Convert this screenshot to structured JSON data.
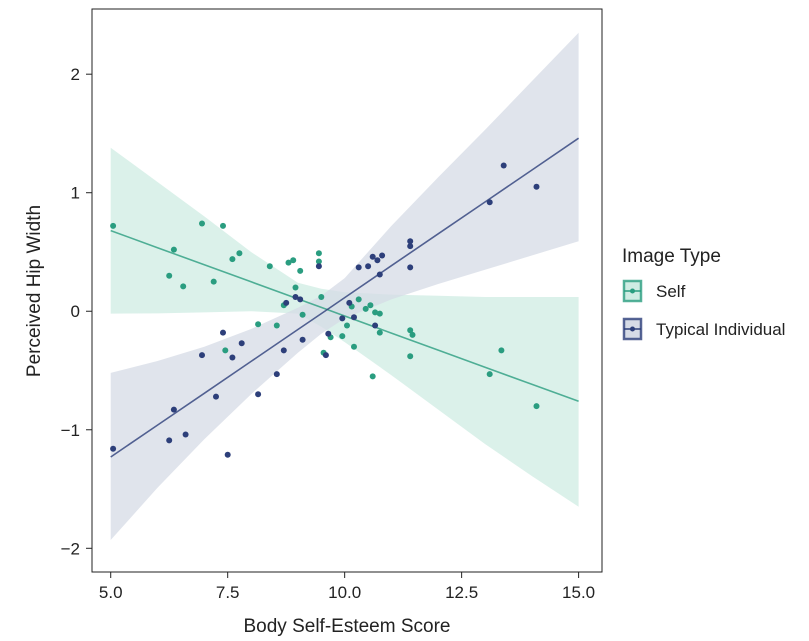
{
  "chart_data": {
    "type": "scatter",
    "title": "",
    "xlabel": "Body Self-Esteem Score",
    "ylabel": "Perceived Hip Width",
    "xlim": [
      4.6,
      15.5
    ],
    "ylim": [
      -2.2,
      2.55
    ],
    "x_ticks": [
      5.0,
      7.5,
      10.0,
      12.5,
      15.0
    ],
    "x_tick_labels": [
      "5.0",
      "7.5",
      "10.0",
      "12.5",
      "15.0"
    ],
    "y_ticks": [
      -2,
      -1,
      0,
      1,
      2
    ],
    "y_tick_labels": [
      "−2",
      "−1",
      "0",
      "1",
      "2"
    ],
    "grid": false,
    "legend": {
      "title": "Image Type",
      "placement": "right"
    },
    "series": [
      {
        "name": "Self",
        "color": "#2a9d80",
        "band_color": "#cfece3",
        "fit": {
          "x": [
            5.0,
            6.0,
            7.0,
            8.0,
            9.0,
            9.5,
            10.0,
            11.0,
            12.0,
            13.0,
            14.0,
            15.0
          ],
          "y": [
            0.68,
            0.536,
            0.392,
            0.248,
            0.104,
            0.032,
            -0.04,
            -0.184,
            -0.328,
            -0.472,
            -0.616,
            -0.76
          ],
          "lower": [
            -0.02,
            -0.018,
            -0.01,
            0.0,
            -0.02,
            -0.13,
            -0.26,
            -0.54,
            -0.83,
            -1.12,
            -1.39,
            -1.65
          ],
          "upper": [
            1.38,
            1.09,
            0.8,
            0.5,
            0.24,
            0.19,
            0.16,
            0.14,
            0.13,
            0.12,
            0.12,
            0.12
          ]
        },
        "points": [
          [
            5.05,
            0.72
          ],
          [
            6.25,
            0.3
          ],
          [
            6.35,
            0.52
          ],
          [
            6.55,
            0.21
          ],
          [
            6.95,
            0.74
          ],
          [
            7.2,
            0.25
          ],
          [
            7.4,
            0.72
          ],
          [
            7.45,
            -0.33
          ],
          [
            7.6,
            0.44
          ],
          [
            7.75,
            0.49
          ],
          [
            8.15,
            -0.11
          ],
          [
            8.4,
            0.38
          ],
          [
            8.55,
            -0.12
          ],
          [
            8.7,
            0.05
          ],
          [
            8.8,
            0.41
          ],
          [
            8.9,
            0.43
          ],
          [
            8.95,
            0.2
          ],
          [
            9.05,
            0.34
          ],
          [
            9.1,
            -0.03
          ],
          [
            9.45,
            0.42
          ],
          [
            9.45,
            0.49
          ],
          [
            9.5,
            0.12
          ],
          [
            9.55,
            -0.35
          ],
          [
            9.7,
            -0.22
          ],
          [
            9.95,
            -0.21
          ],
          [
            10.05,
            -0.12
          ],
          [
            10.15,
            0.04
          ],
          [
            10.2,
            -0.3
          ],
          [
            10.3,
            0.1
          ],
          [
            10.45,
            0.02
          ],
          [
            10.55,
            0.05
          ],
          [
            10.6,
            -0.55
          ],
          [
            10.65,
            -0.01
          ],
          [
            10.75,
            -0.02
          ],
          [
            10.75,
            -0.18
          ],
          [
            11.4,
            -0.16
          ],
          [
            11.4,
            -0.38
          ],
          [
            11.45,
            -0.2
          ],
          [
            13.1,
            -0.53
          ],
          [
            13.35,
            -0.33
          ],
          [
            14.1,
            -0.8
          ]
        ]
      },
      {
        "name": "Typical Individual",
        "color": "#2d3f7a",
        "band_color": "#d6dbe6",
        "fit": {
          "x": [
            5.0,
            6.0,
            7.0,
            8.0,
            9.0,
            9.5,
            10.0,
            11.0,
            12.0,
            13.0,
            14.0,
            15.0
          ],
          "y": [
            -1.23,
            -0.961,
            -0.692,
            -0.423,
            -0.154,
            -0.0195,
            0.115,
            0.384,
            0.653,
            0.922,
            1.191,
            1.46
          ],
          "lower": [
            -1.93,
            -1.49,
            -1.08,
            -0.7,
            -0.35,
            -0.19,
            -0.06,
            0.1,
            0.23,
            0.35,
            0.47,
            0.59
          ],
          "upper": [
            -0.52,
            -0.42,
            -0.3,
            -0.15,
            0.03,
            0.13,
            0.28,
            0.72,
            1.13,
            1.53,
            1.94,
            2.35
          ]
        },
        "points": [
          [
            5.05,
            -1.16
          ],
          [
            6.25,
            -1.09
          ],
          [
            6.35,
            -0.83
          ],
          [
            6.6,
            -1.04
          ],
          [
            6.95,
            -0.37
          ],
          [
            7.25,
            -0.72
          ],
          [
            7.4,
            -0.18
          ],
          [
            7.5,
            -1.21
          ],
          [
            7.6,
            -0.39
          ],
          [
            7.8,
            -0.27
          ],
          [
            8.15,
            -0.7
          ],
          [
            8.55,
            -0.53
          ],
          [
            8.7,
            -0.33
          ],
          [
            8.75,
            0.07
          ],
          [
            8.95,
            0.12
          ],
          [
            9.05,
            0.1
          ],
          [
            9.1,
            -0.24
          ],
          [
            9.45,
            0.38
          ],
          [
            9.6,
            -0.37
          ],
          [
            9.65,
            -0.19
          ],
          [
            9.95,
            -0.06
          ],
          [
            10.1,
            0.07
          ],
          [
            10.2,
            -0.05
          ],
          [
            10.3,
            0.37
          ],
          [
            10.5,
            0.38
          ],
          [
            10.6,
            0.46
          ],
          [
            10.65,
            -0.12
          ],
          [
            10.7,
            0.43
          ],
          [
            10.75,
            0.31
          ],
          [
            10.8,
            0.47
          ],
          [
            11.4,
            0.55
          ],
          [
            11.4,
            0.59
          ],
          [
            11.4,
            0.37
          ],
          [
            13.1,
            0.92
          ],
          [
            13.4,
            1.23
          ],
          [
            14.1,
            1.05
          ]
        ]
      }
    ]
  }
}
